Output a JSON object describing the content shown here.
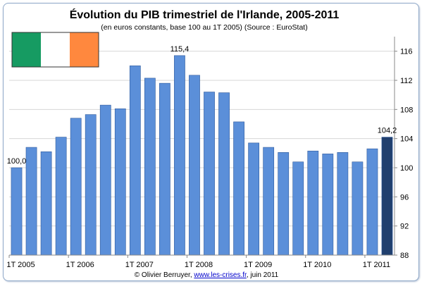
{
  "chart_data": {
    "type": "bar",
    "title": "Évolution du PIB trimestriel de l'Irlande, 2005-2011",
    "subtitle": "(en euros constants, base 100 au 1T 2005) (Source : EuroStat)",
    "categories": [
      "1T 2005",
      "2T 2005",
      "3T 2005",
      "4T 2005",
      "1T 2006",
      "2T 2006",
      "3T 2006",
      "4T 2006",
      "1T 2007",
      "2T 2007",
      "3T 2007",
      "4T 2007",
      "1T 2008",
      "2T 2008",
      "3T 2008",
      "4T 2008",
      "1T 2009",
      "2T 2009",
      "3T 2009",
      "4T 2009",
      "1T 2010",
      "2T 2010",
      "3T 2010",
      "4T 2010",
      "1T 2011",
      "2T 2011"
    ],
    "values": [
      100.0,
      102.8,
      102.2,
      104.2,
      106.8,
      107.3,
      108.6,
      108.1,
      114.0,
      112.3,
      111.6,
      115.4,
      112.7,
      110.4,
      110.3,
      106.3,
      103.4,
      102.8,
      102.1,
      100.8,
      102.3,
      101.9,
      102.1,
      100.8,
      102.6,
      104.2
    ],
    "highlight_index": 25,
    "ylim": [
      88,
      118
    ],
    "yticks": [
      88,
      92,
      96,
      100,
      104,
      108,
      112,
      116
    ],
    "xtick_labels": [
      "1T 2005",
      "1T 2006",
      "1T 2007",
      "1T 2008",
      "1T 2009",
      "1T 2010",
      "1T 2011"
    ],
    "xtick_indices": [
      0,
      4,
      8,
      12,
      16,
      20,
      24
    ],
    "data_labels": [
      {
        "index": 0,
        "text": "100,0"
      },
      {
        "index": 11,
        "text": "115,4"
      },
      {
        "index": 25,
        "text": "104,2"
      }
    ],
    "grid": "y",
    "colors": {
      "bar": "#5b8fd9",
      "bar_edge": "#2f5a9c",
      "highlight": "#203f6e",
      "grid": "#d7d7d7",
      "axis": "#888888"
    },
    "flag": {
      "colors": [
        "#169b62",
        "#ffffff",
        "#ff883e"
      ]
    }
  },
  "credit": {
    "prefix": "© Olivier Berruyer, ",
    "link": "www.les-crises.fr",
    "suffix": ", juin 2011"
  }
}
